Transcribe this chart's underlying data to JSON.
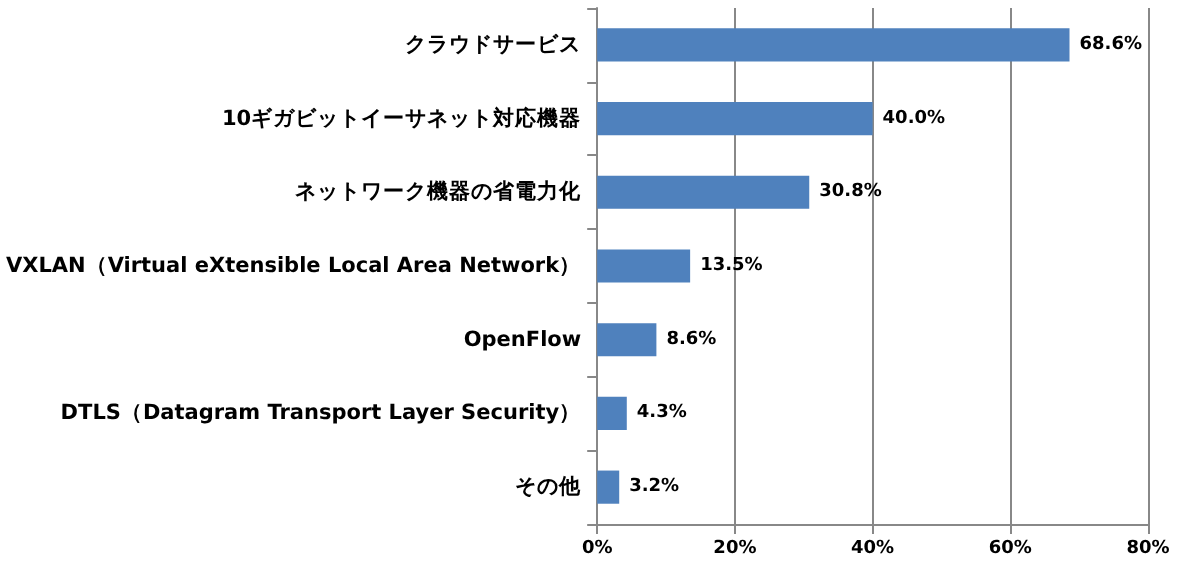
{
  "chart_data": {
    "type": "bar",
    "orientation": "horizontal",
    "categories": [
      "クラウドサービス",
      "10ギガビットイーサネット対応機器",
      "ネットワーク機器の省電力化",
      "VXLAN（Virtual eXtensible Local Area Network）",
      "OpenFlow",
      "DTLS（Datagram Transport Layer Security）",
      "その他"
    ],
    "values": [
      68.6,
      40.0,
      30.8,
      13.5,
      8.6,
      4.3,
      3.2
    ],
    "value_labels": [
      "68.6%",
      "40.0%",
      "30.8%",
      "13.5%",
      "8.6%",
      "4.3%",
      "3.2%"
    ],
    "color": "#4f81bd",
    "xlim": [
      0,
      80
    ],
    "xticks": [
      {
        "value": 0,
        "label": "0%"
      },
      {
        "value": 20,
        "label": "20%"
      },
      {
        "value": 40,
        "label": "40%"
      },
      {
        "value": 60,
        "label": "60%"
      },
      {
        "value": 80,
        "label": "80%"
      }
    ],
    "grid": "x"
  }
}
